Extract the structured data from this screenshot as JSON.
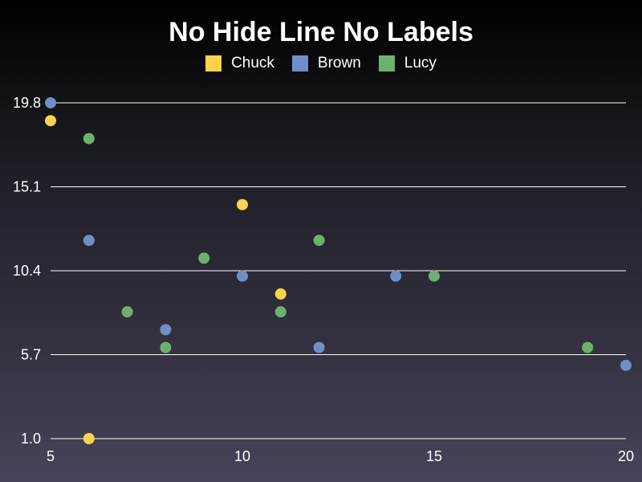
{
  "chart_data": {
    "type": "scatter",
    "title": "No Hide Line No Labels",
    "xlabel": "",
    "ylabel": "",
    "xlim": [
      5,
      20
    ],
    "ylim": [
      1.0,
      19.8
    ],
    "x_ticks": [
      "5",
      "10",
      "15",
      "20"
    ],
    "y_ticks": [
      "1.0",
      "5.7",
      "10.4",
      "15.1",
      "19.8"
    ],
    "grid": "horizontal",
    "legend_position": "top-center",
    "series": [
      {
        "name": "Chuck",
        "color": "#ffd24d",
        "points": [
          {
            "x": 5,
            "y": 18.8
          },
          {
            "x": 6,
            "y": 1.0
          },
          {
            "x": 10,
            "y": 14.1
          },
          {
            "x": 11,
            "y": 9.1
          }
        ]
      },
      {
        "name": "Brown",
        "color": "#6f8fc6",
        "points": [
          {
            "x": 5,
            "y": 19.8
          },
          {
            "x": 6,
            "y": 12.1
          },
          {
            "x": 8,
            "y": 7.1
          },
          {
            "x": 10,
            "y": 10.1
          },
          {
            "x": 12,
            "y": 6.1
          },
          {
            "x": 14,
            "y": 10.1
          },
          {
            "x": 20,
            "y": 5.1
          }
        ]
      },
      {
        "name": "Lucy",
        "color": "#6fb06f",
        "points": [
          {
            "x": 6,
            "y": 17.8
          },
          {
            "x": 7,
            "y": 8.1
          },
          {
            "x": 8,
            "y": 6.1
          },
          {
            "x": 9,
            "y": 11.1
          },
          {
            "x": 11,
            "y": 8.1
          },
          {
            "x": 12,
            "y": 12.1
          },
          {
            "x": 15,
            "y": 10.1
          },
          {
            "x": 19,
            "y": 6.1
          }
        ]
      }
    ]
  }
}
